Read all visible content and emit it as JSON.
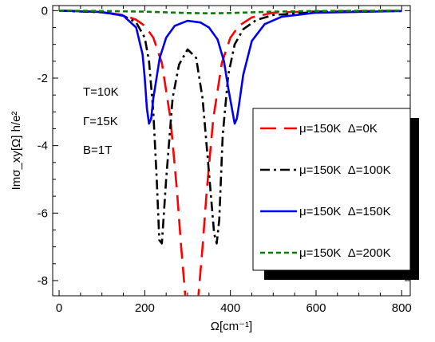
{
  "chart_data": {
    "type": "line",
    "xlabel": "Ω[cm⁻¹]",
    "ylabel": "Imσ_xy[Ω] h/e²",
    "xlim": [
      -15,
      820
    ],
    "ylim": [
      -8.45,
      0.15
    ],
    "xticks": [
      0,
      200,
      400,
      600,
      800
    ],
    "yticks": [
      0,
      -2,
      -4,
      -6,
      -8
    ],
    "xtick_labels": [
      "0",
      "200",
      "400",
      "600",
      "800"
    ],
    "ytick_labels": [
      "0",
      "-2",
      "-4",
      "-6",
      "-8"
    ],
    "annotations": [
      "T=10K",
      "Γ=15K",
      "B=1T"
    ],
    "legend_position": "center-right",
    "series": [
      {
        "name": "μ=150K  Δ=0K",
        "color": "#ff0000",
        "dash": "long-dash",
        "x": [
          0,
          50,
          100,
          150,
          180,
          200,
          220,
          240,
          260,
          275,
          285,
          295,
          305,
          315,
          325,
          335,
          345,
          360,
          380,
          400,
          420,
          450,
          500,
          600,
          800
        ],
        "y": [
          0.0,
          -0.01,
          -0.04,
          -0.13,
          -0.27,
          -0.45,
          -0.8,
          -1.55,
          -3.2,
          -5.3,
          -7.0,
          -8.5,
          -9.5,
          -9.5,
          -8.5,
          -7.0,
          -5.3,
          -3.2,
          -1.55,
          -0.8,
          -0.45,
          -0.2,
          -0.06,
          -0.02,
          -0.005
        ]
      },
      {
        "name": "μ=150K  Δ=100K",
        "color": "#000000",
        "dash": "dash-dot",
        "x": [
          0,
          100,
          150,
          180,
          200,
          210,
          220,
          228,
          234,
          240,
          250,
          265,
          280,
          300,
          320,
          335,
          350,
          362,
          368,
          374,
          382,
          395,
          410,
          430,
          460,
          500,
          600,
          800
        ],
        "y": [
          0.0,
          -0.05,
          -0.15,
          -0.35,
          -0.8,
          -1.5,
          -3.0,
          -5.0,
          -6.8,
          -6.9,
          -5.0,
          -2.6,
          -1.6,
          -1.15,
          -1.4,
          -2.6,
          -4.8,
          -6.6,
          -6.9,
          -6.2,
          -3.7,
          -1.9,
          -1.0,
          -0.55,
          -0.28,
          -0.13,
          -0.04,
          -0.01
        ]
      },
      {
        "name": "μ=150K  Δ=150K",
        "color": "#0000ee",
        "dash": "solid",
        "x": [
          0,
          100,
          150,
          180,
          195,
          200,
          205,
          210,
          215,
          220,
          235,
          250,
          270,
          300,
          330,
          350,
          370,
          385,
          395,
          405,
          410,
          415,
          420,
          430,
          450,
          480,
          520,
          600,
          800
        ],
        "y": [
          0.0,
          -0.04,
          -0.15,
          -0.5,
          -1.3,
          -2.0,
          -2.9,
          -3.35,
          -3.2,
          -2.6,
          -1.4,
          -0.8,
          -0.45,
          -0.3,
          -0.35,
          -0.5,
          -0.85,
          -1.5,
          -2.3,
          -3.0,
          -3.35,
          -3.2,
          -2.8,
          -1.9,
          -0.9,
          -0.4,
          -0.18,
          -0.06,
          -0.01
        ]
      },
      {
        "name": "μ=150K  Δ=200K",
        "color": "#008000",
        "dash": "short-dash",
        "x": [
          0,
          100,
          200,
          250,
          300,
          350,
          400,
          450,
          500,
          600,
          800
        ],
        "y": [
          0.0,
          -0.01,
          -0.03,
          -0.05,
          -0.07,
          -0.08,
          -0.07,
          -0.05,
          -0.03,
          -0.01,
          0.0
        ]
      }
    ]
  }
}
